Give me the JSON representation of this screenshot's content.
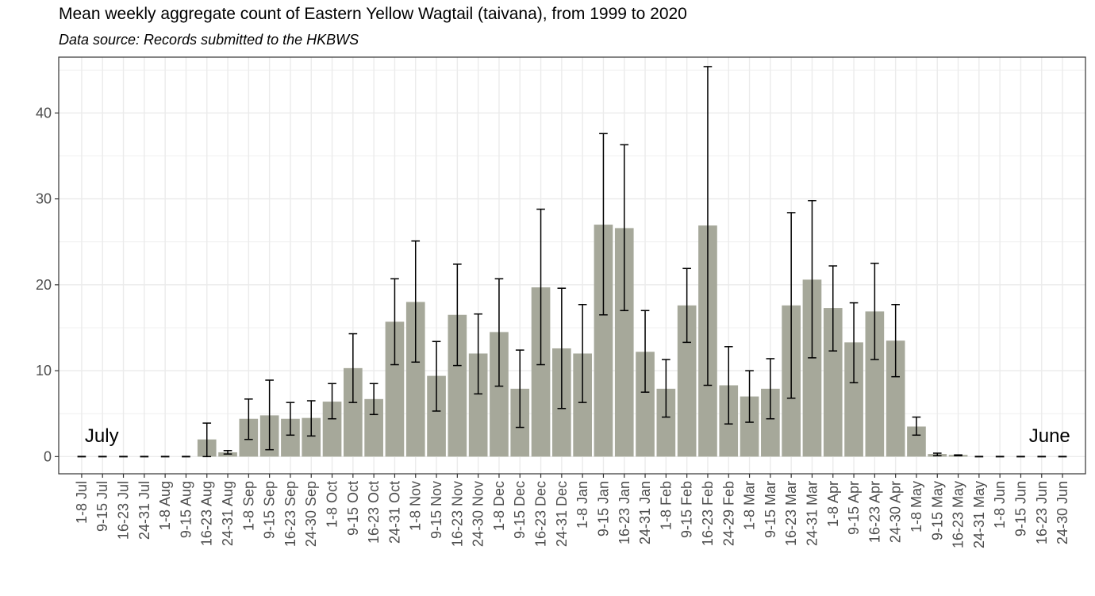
{
  "chart_data": {
    "type": "bar",
    "title": "Mean weekly aggregate count of Eastern Yellow Wagtail (taivana), from 1999 to 2020",
    "subtitle": "Data source: Records submitted to the HKBWS",
    "xlabel": "",
    "ylabel": "",
    "ylim": [
      -2,
      46.5
    ],
    "yticks": [
      0,
      10,
      20,
      30,
      40
    ],
    "grid": true,
    "annotations": [
      {
        "text": "July",
        "x": "1-8 Jul"
      },
      {
        "text": "June",
        "x": "16-23 Jun"
      }
    ],
    "colors": {
      "bar": "#a6a89a",
      "error_bar": "#000000",
      "panel_border": "#333333",
      "grid": "#ebebeb"
    },
    "categories": [
      "1-8 Jul",
      "9-15 Jul",
      "16-23 Jul",
      "24-31 Jul",
      "1-8 Aug",
      "9-15 Aug",
      "16-23 Aug",
      "24-31 Aug",
      "1-8 Sep",
      "9-15 Sep",
      "16-23 Sep",
      "24-30 Sep",
      "1-8 Oct",
      "9-15 Oct",
      "16-23 Oct",
      "24-31 Oct",
      "1-8 Nov",
      "9-15 Nov",
      "16-23 Nov",
      "24-30 Nov",
      "1-8 Dec",
      "9-15 Dec",
      "16-23 Dec",
      "24-31 Dec",
      "1-8 Jan",
      "9-15 Jan",
      "16-23 Jan",
      "24-31 Jan",
      "1-8 Feb",
      "9-15 Feb",
      "16-23 Feb",
      "24-29 Feb",
      "1-8 Mar",
      "9-15 Mar",
      "16-23 Mar",
      "24-31 Mar",
      "1-8 Apr",
      "9-15 Apr",
      "16-23 Apr",
      "24-30 Apr",
      "1-8 May",
      "9-15 May",
      "16-23 May",
      "24-31 May",
      "1-8 Jun",
      "9-15 Jun",
      "16-23 Jun",
      "24-30 Jun"
    ],
    "values": [
      0,
      0,
      0,
      0,
      0,
      0,
      2.0,
      0.5,
      4.4,
      4.8,
      4.4,
      4.5,
      6.4,
      10.3,
      6.7,
      15.7,
      18.0,
      9.4,
      16.5,
      12.0,
      14.5,
      7.9,
      19.7,
      12.6,
      12.0,
      27.0,
      26.6,
      12.2,
      7.9,
      17.6,
      26.9,
      8.3,
      7.0,
      7.9,
      17.6,
      20.6,
      17.3,
      13.3,
      16.9,
      13.5,
      3.5,
      0.3,
      0.2,
      0,
      0,
      0,
      0,
      0
    ],
    "error_low": [
      0,
      0,
      0,
      0,
      0,
      0,
      0,
      0.3,
      2.0,
      0.8,
      2.5,
      2.4,
      4.4,
      6.3,
      4.9,
      10.7,
      11.0,
      5.3,
      10.6,
      7.3,
      8.2,
      3.4,
      10.7,
      5.6,
      6.3,
      16.5,
      17.0,
      7.5,
      4.6,
      13.3,
      8.3,
      3.8,
      4.0,
      4.4,
      6.8,
      11.5,
      12.3,
      8.6,
      11.3,
      9.3,
      2.5,
      0.1,
      0.1,
      0,
      0,
      0,
      0,
      0
    ],
    "error_high": [
      0,
      0,
      0,
      0,
      0,
      0,
      3.9,
      0.7,
      6.7,
      8.9,
      6.3,
      6.5,
      8.5,
      14.3,
      8.5,
      20.7,
      25.1,
      13.4,
      22.4,
      16.6,
      20.7,
      12.4,
      28.8,
      19.6,
      17.7,
      37.6,
      36.3,
      17.0,
      11.3,
      21.9,
      45.4,
      12.8,
      10.0,
      11.4,
      28.4,
      29.8,
      22.2,
      17.9,
      22.5,
      17.7,
      4.6,
      0.4,
      0.2,
      0,
      0,
      0,
      0,
      0
    ]
  }
}
